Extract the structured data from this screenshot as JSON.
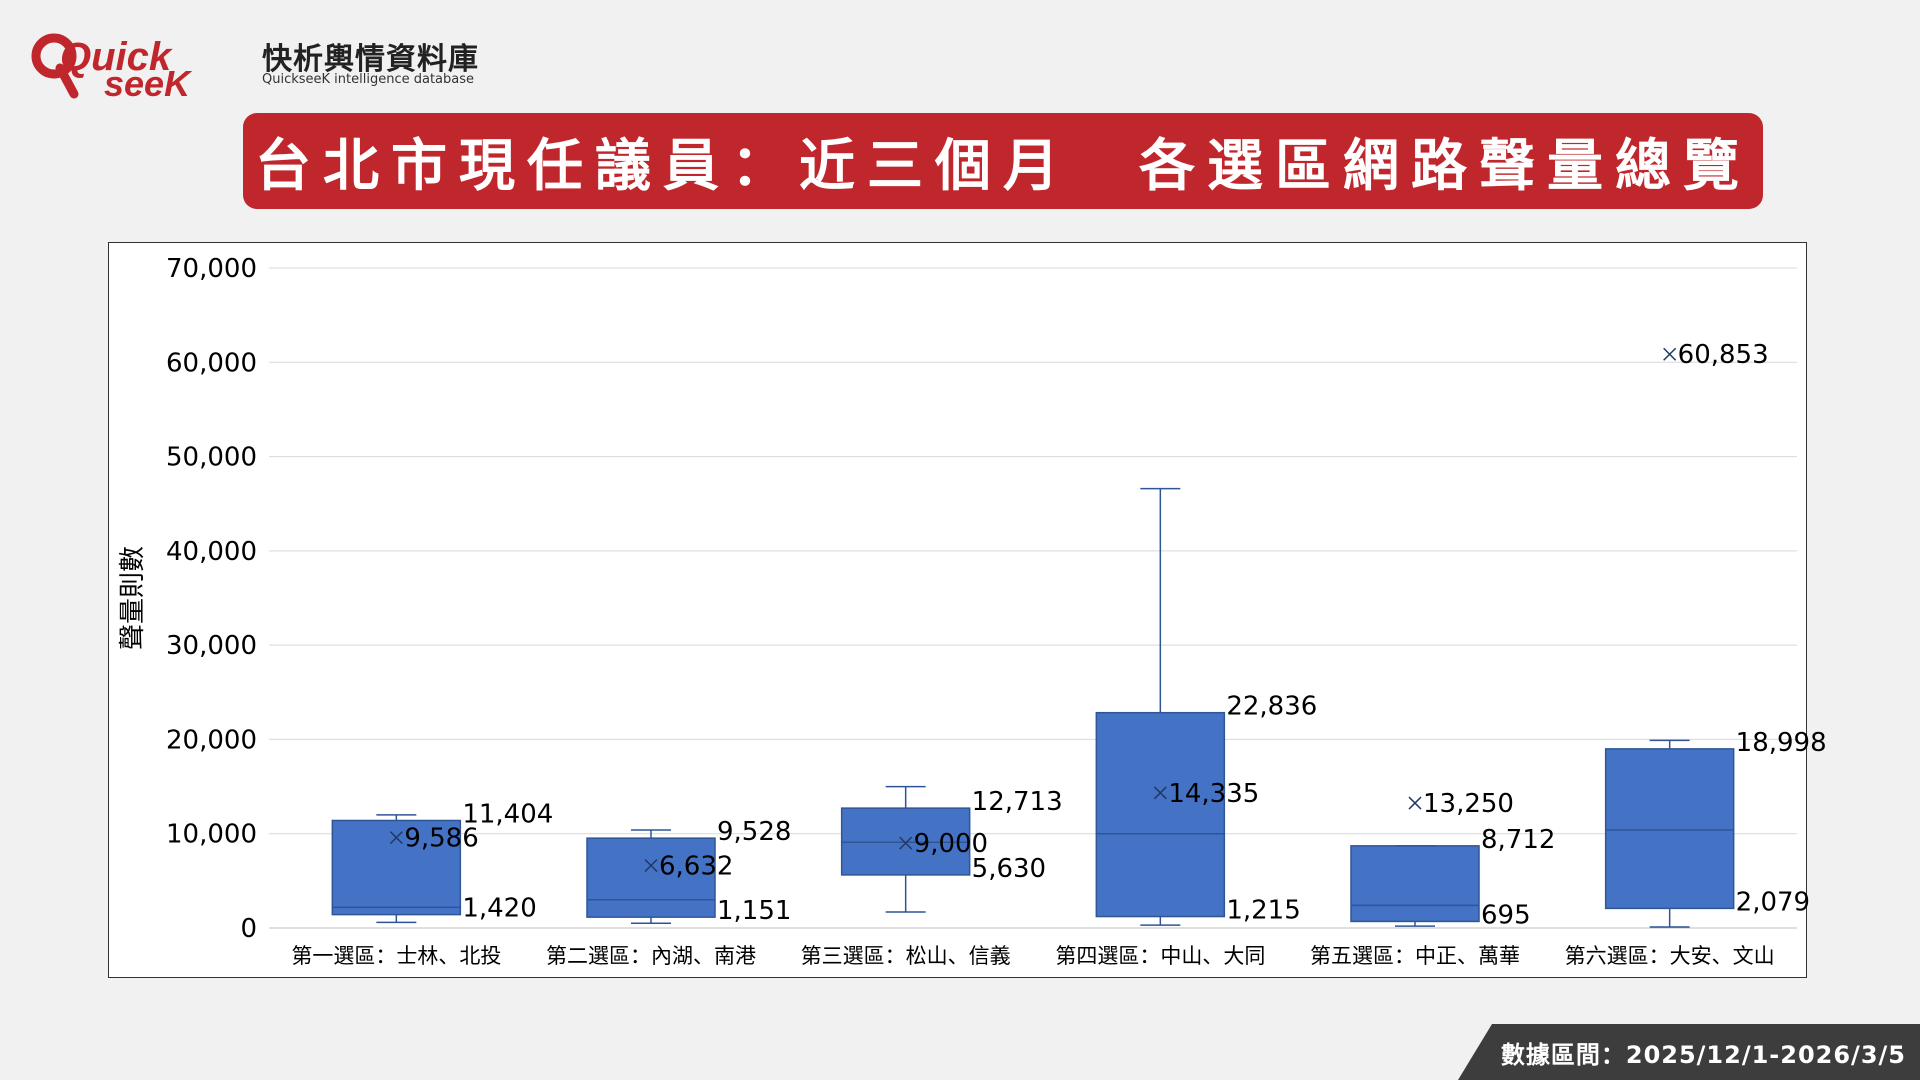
{
  "header": {
    "logo_cn": "快析輿情資料庫",
    "logo_en": "QuickseeK intelligence database",
    "logo_brand_top": "Quick",
    "logo_brand_bottom": "seeK",
    "brand_color": "#c0272d",
    "title": "台北市現任議員：近三個月　各選區網路聲量總覽"
  },
  "footer": {
    "label": "數據區間：2025/12/1-2026/3/5"
  },
  "chart_data": {
    "type": "box",
    "title": "",
    "xlabel": "",
    "ylabel": "聲量則數",
    "ylim": [
      0,
      70000
    ],
    "yticks": [
      0,
      10000,
      20000,
      30000,
      40000,
      50000,
      60000,
      70000
    ],
    "ytick_labels": [
      "0",
      "10,000",
      "20,000",
      "30,000",
      "40,000",
      "50,000",
      "60,000",
      "70,000"
    ],
    "grid": true,
    "box_color": "#4472c4",
    "box_edge_color": "#2f5597",
    "categories": [
      "第一選區：士林、北投",
      "第二選區：內湖、南港",
      "第三選區：松山、信義",
      "第四選區：中山、大同",
      "第五選區：中正、萬華",
      "第六選區：大安、文山"
    ],
    "boxes": [
      {
        "min": 600,
        "q1": 1420,
        "median": 2200,
        "q3": 11404,
        "max": 12000,
        "mean": 9586,
        "q1_label": "1,420",
        "q3_label": "11,404",
        "mean_label": "9,586"
      },
      {
        "min": 500,
        "q1": 1151,
        "median": 3000,
        "q3": 9528,
        "max": 10400,
        "mean": 6632,
        "q1_label": "1,151",
        "q3_label": "9,528",
        "mean_label": "6,632"
      },
      {
        "min": 1700,
        "q1": 5630,
        "median": 9100,
        "q3": 12713,
        "max": 15000,
        "mean": 9000,
        "q1_label": "5,630",
        "q3_label": "12,713",
        "mean_label": "9,000"
      },
      {
        "min": 300,
        "q1": 1215,
        "median": 10000,
        "q3": 22836,
        "max": 46600,
        "mean": 14335,
        "q1_label": "1,215",
        "q3_label": "22,836",
        "mean_label": "14,335"
      },
      {
        "min": 200,
        "q1": 695,
        "median": 2400,
        "q3": 8712,
        "max": 8712,
        "mean": 13250,
        "q1_label": "695",
        "q3_label": "8,712",
        "mean_label": "13,250"
      },
      {
        "min": 100,
        "q1": 2079,
        "median": 10400,
        "q3": 18998,
        "max": 19900,
        "mean": 60853,
        "q1_label": "2,079",
        "q3_label": "18,998",
        "mean_label": "60,853"
      }
    ]
  }
}
